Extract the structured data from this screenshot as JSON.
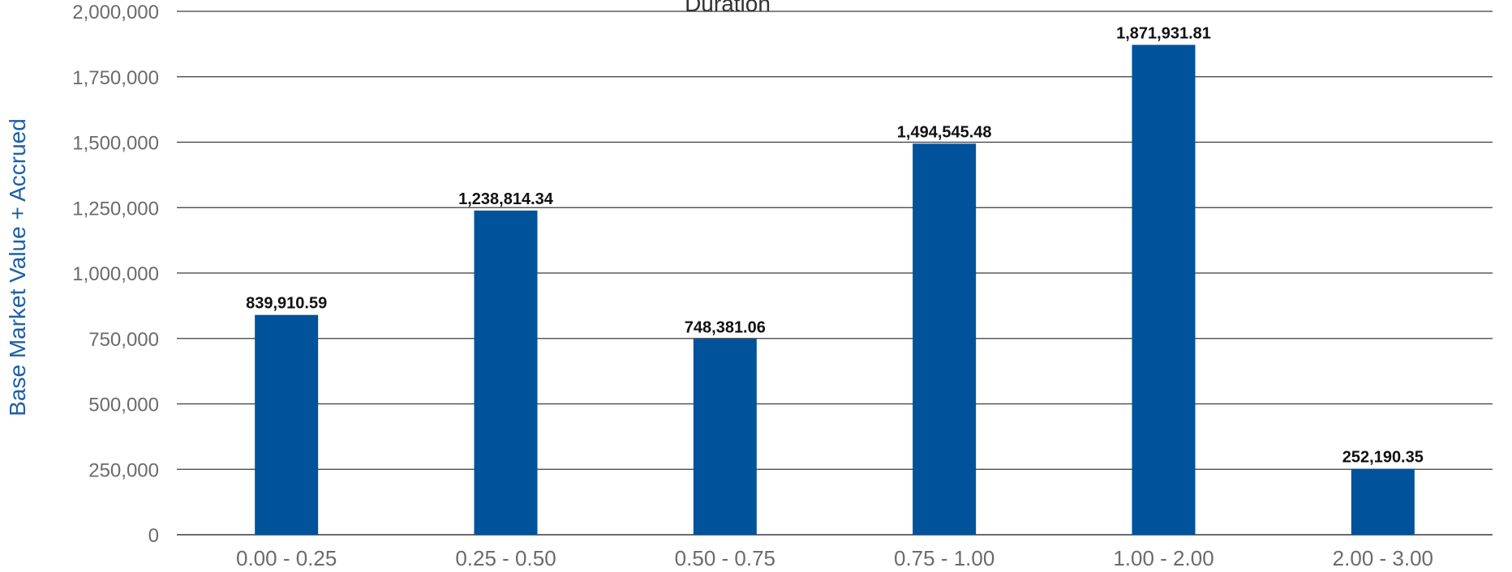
{
  "chart_data": {
    "type": "bar",
    "title": "Duration",
    "xlabel": "",
    "ylabel": "Base Market Value + Accrued",
    "categories": [
      "0.00 - 0.25",
      "0.25 - 0.50",
      "0.50 - 0.75",
      "0.75 - 1.00",
      "1.00 - 2.00",
      "2.00 - 3.00"
    ],
    "values": [
      839910.59,
      1238814.34,
      748381.06,
      1494545.48,
      1871931.81,
      252190.35
    ],
    "data_labels": [
      "839,910.59",
      "1,238,814.34",
      "748,381.06",
      "1,494,545.48",
      "1,871,931.81",
      "252,190.35"
    ],
    "ylim": [
      0,
      2000000
    ],
    "yticks": [
      0,
      250000,
      500000,
      750000,
      1000000,
      1250000,
      1500000,
      1750000,
      2000000
    ],
    "ytick_labels": [
      "0",
      "250,000",
      "500,000",
      "750,000",
      "1,000,000",
      "1,250,000",
      "1,500,000",
      "1,750,000",
      "2,000,000"
    ],
    "grid": true,
    "legend": "none",
    "colors": {
      "bar": "#00529b",
      "grid": "#3a3a3a",
      "ylabel": "#1f5fa8"
    }
  }
}
